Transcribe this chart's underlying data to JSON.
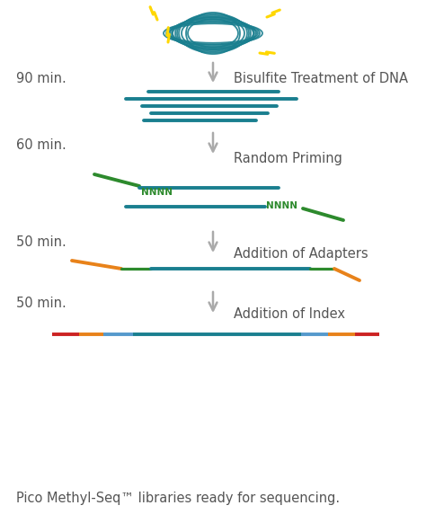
{
  "bg_color": "#ffffff",
  "teal": "#1a7f8f",
  "green": "#2d8a2d",
  "orange": "#e8821a",
  "red": "#cc2222",
  "blue_index": "#5599cc",
  "gray_arrow": "#aaaaaa",
  "label_color": "#555555",
  "nnnn_color": "#2d8a2d",
  "footer": "Pico Methyl-Seq™ libraries ready for sequencing.",
  "labels_left": [
    "90 min.",
    "60 min.",
    "50 min.",
    "50 min."
  ],
  "labels_right": [
    "Bisulfite Treatment of DNA",
    "Random Priming",
    "Addition of Adapters",
    "Addition of Index"
  ],
  "label_fontsize": 10.5,
  "title_fontsize": 10.5
}
